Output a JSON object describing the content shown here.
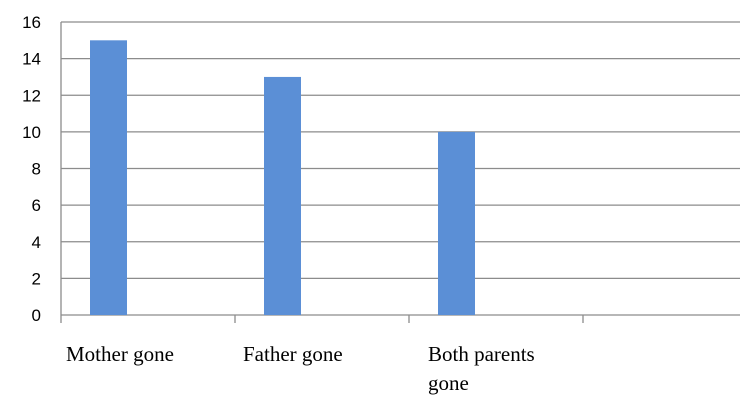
{
  "chart_data": {
    "type": "bar",
    "categories": [
      "Mother gone",
      "Father gone",
      "Both parents gone"
    ],
    "category_label_lines": [
      [
        "Mother gone"
      ],
      [
        "Father gone"
      ],
      [
        "Both parents",
        "gone"
      ]
    ],
    "values": [
      15,
      13,
      10
    ],
    "ylim": [
      0,
      16
    ],
    "yticks": [
      0,
      2,
      4,
      6,
      8,
      10,
      12,
      14,
      16
    ],
    "grid": true,
    "legend": "none",
    "title": "",
    "xlabel": "",
    "ylabel": "",
    "colors": {
      "bar": "#5b8fd6",
      "grid": "#8c8c8c",
      "axis": "#8c8c8c",
      "text": "#000000"
    }
  }
}
